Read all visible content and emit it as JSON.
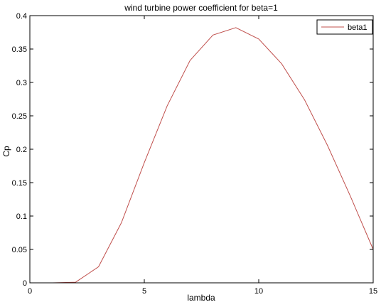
{
  "chart_data": {
    "type": "line",
    "title": "wind turbine power coefficient for beta=1",
    "xlabel": "lambda",
    "ylabel": "Cp",
    "xlim": [
      0,
      15
    ],
    "ylim": [
      0,
      0.4
    ],
    "xticks": [
      0,
      5,
      10,
      15
    ],
    "xtick_labels": [
      "0",
      "5",
      "10",
      "15"
    ],
    "yticks": [
      0,
      0.05,
      0.1,
      0.15,
      0.2,
      0.25,
      0.3,
      0.35,
      0.4
    ],
    "ytick_labels": [
      "0",
      "0.05",
      "0.1",
      "0.15",
      "0.2",
      "0.25",
      "0.3",
      "0.35",
      "0.4"
    ],
    "grid": false,
    "legend_position": "top-right",
    "series": [
      {
        "name": "beta1",
        "color": "#c0504d",
        "x": [
          0,
          1,
          2,
          3,
          4,
          5,
          6,
          7,
          8,
          9,
          10,
          11,
          12,
          13,
          14,
          15
        ],
        "y": [
          0.0,
          0.0,
          0.001,
          0.024,
          0.09,
          0.18,
          0.265,
          0.333,
          0.371,
          0.382,
          0.365,
          0.328,
          0.274,
          0.206,
          0.13,
          0.05
        ]
      }
    ]
  }
}
